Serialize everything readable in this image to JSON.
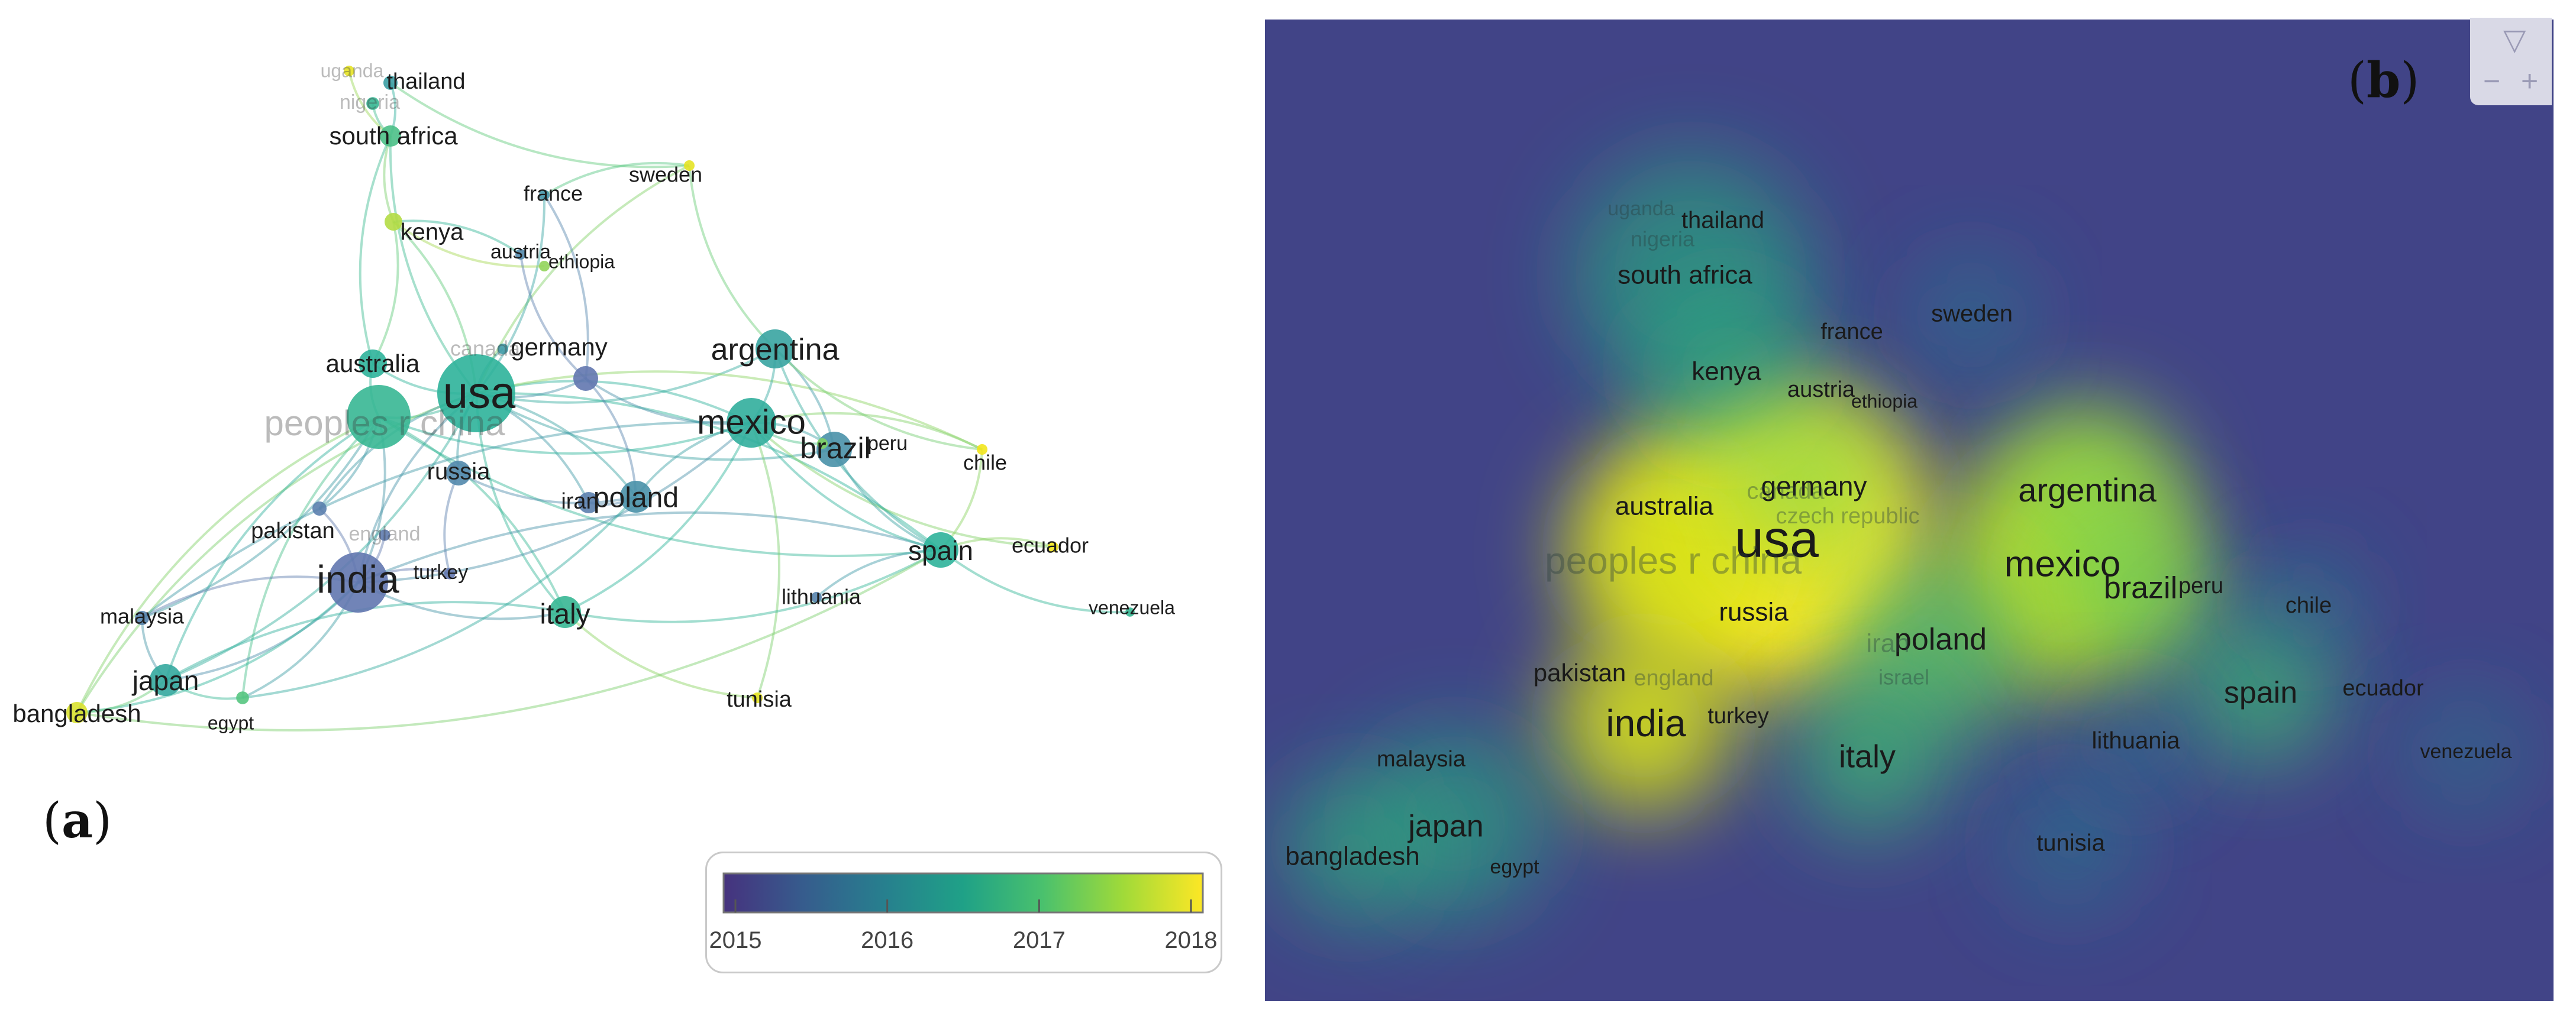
{
  "panels": {
    "a_label": "a",
    "b_label": "b"
  },
  "network": {
    "node_colors": {
      "2015": "#6a6fb0",
      "2015.5": "#5783ad",
      "2016": "#3f9aa6",
      "2016.5": "#2db39a",
      "2017": "#5fc97a",
      "2017.5": "#b4dc45",
      "2018": "#f2e51d"
    },
    "nodes": [
      {
        "id": "usa",
        "label": "usa",
        "year": 2016.5,
        "size": 11
      },
      {
        "id": "china",
        "label": "peoples r china",
        "year": 2016.6,
        "size": 9
      },
      {
        "id": "india",
        "label": "india",
        "year": 2015.2,
        "size": 8.5
      },
      {
        "id": "mexico",
        "label": "mexico",
        "year": 2016.4,
        "size": 7
      },
      {
        "id": "argentina",
        "label": "argentina",
        "year": 2016.2,
        "size": 5.5
      },
      {
        "id": "brazil",
        "label": "brazil",
        "year": 2015.8,
        "size": 5
      },
      {
        "id": "spain",
        "label": "spain",
        "year": 2016.5,
        "size": 5
      },
      {
        "id": "poland",
        "label": "poland",
        "year": 2015.8,
        "size": 4.5
      },
      {
        "id": "italy",
        "label": "italy",
        "year": 2016.6,
        "size": 4.5
      },
      {
        "id": "japan",
        "label": "japan",
        "year": 2016.3,
        "size": 4.5
      },
      {
        "id": "australia",
        "label": "australia",
        "year": 2016.5,
        "size": 4
      },
      {
        "id": "germany",
        "label": "germany",
        "year": 2015.2,
        "size": 3.5
      },
      {
        "id": "russia",
        "label": "russia",
        "year": 2015.6,
        "size": 3.5
      },
      {
        "id": "iran",
        "label": "iran",
        "year": 2015.4,
        "size": 3
      },
      {
        "id": "south-africa",
        "label": "south africa",
        "year": 2016.8,
        "size": 3
      },
      {
        "id": "kenya",
        "label": "kenya",
        "year": 2017.5,
        "size": 2.5
      },
      {
        "id": "bangladesh",
        "label": "bangladesh",
        "year": 2017.8,
        "size": 3
      },
      {
        "id": "pakistan",
        "label": "pakistan",
        "year": 2015.4,
        "size": 2
      },
      {
        "id": "malaysia",
        "label": "malaysia",
        "year": 2015.5,
        "size": 2
      },
      {
        "id": "egypt",
        "label": "egypt",
        "year": 2016.9,
        "size": 1.8
      },
      {
        "id": "turkey",
        "label": "turkey",
        "year": 2015.2,
        "size": 1.6
      },
      {
        "id": "england",
        "label": "england",
        "year": 2015.3,
        "size": 1.6
      },
      {
        "id": "canada",
        "label": "canada",
        "year": 2016.0,
        "size": 1.5
      },
      {
        "id": "france",
        "label": "france",
        "year": 2015.9,
        "size": 1.5
      },
      {
        "id": "austria",
        "label": "austria",
        "year": 2015.6,
        "size": 1.5
      },
      {
        "id": "ethiopia",
        "label": "ethiopia",
        "year": 2017.3,
        "size": 1.5
      },
      {
        "id": "thailand",
        "label": "thailand",
        "year": 2016.1,
        "size": 2
      },
      {
        "id": "nigeria",
        "label": "nigeria",
        "year": 2016.6,
        "size": 1.8
      },
      {
        "id": "uganda",
        "label": "uganda",
        "year": 2017.9,
        "size": 1.5
      },
      {
        "id": "sweden",
        "label": "sweden",
        "year": 2017.9,
        "size": 1.5
      },
      {
        "id": "chile",
        "label": "chile",
        "year": 2018,
        "size": 1.5
      },
      {
        "id": "peru",
        "label": "peru",
        "year": 2017.2,
        "size": 1.5
      },
      {
        "id": "ecuador",
        "label": "ecuador",
        "year": 2018,
        "size": 1.5
      },
      {
        "id": "lithuania",
        "label": "lithuania",
        "year": 2015.5,
        "size": 1.5
      },
      {
        "id": "tunisia",
        "label": "tunisia",
        "year": 2017.9,
        "size": 1.5
      },
      {
        "id": "venezuela",
        "label": "venezuela",
        "year": 2016.6,
        "size": 1.3
      }
    ],
    "links": [
      [
        "usa",
        "china"
      ],
      [
        "usa",
        "india"
      ],
      [
        "usa",
        "mexico"
      ],
      [
        "usa",
        "argentina"
      ],
      [
        "usa",
        "spain"
      ],
      [
        "usa",
        "brazil"
      ],
      [
        "usa",
        "poland"
      ],
      [
        "usa",
        "italy"
      ],
      [
        "usa",
        "japan"
      ],
      [
        "usa",
        "germany"
      ],
      [
        "usa",
        "australia"
      ],
      [
        "usa",
        "russia"
      ],
      [
        "usa",
        "south-africa"
      ],
      [
        "usa",
        "kenya"
      ],
      [
        "usa",
        "sweden"
      ],
      [
        "usa",
        "bangladesh"
      ],
      [
        "usa",
        "chile"
      ],
      [
        "usa",
        "france"
      ],
      [
        "usa",
        "iran"
      ],
      [
        "usa",
        "pakistan"
      ],
      [
        "china",
        "india"
      ],
      [
        "china",
        "japan"
      ],
      [
        "china",
        "australia"
      ],
      [
        "china",
        "mexico"
      ],
      [
        "china",
        "malaysia"
      ],
      [
        "china",
        "bangladesh"
      ],
      [
        "china",
        "pakistan"
      ],
      [
        "china",
        "egypt"
      ],
      [
        "china",
        "italy"
      ],
      [
        "china",
        "spain"
      ],
      [
        "india",
        "japan"
      ],
      [
        "india",
        "malaysia"
      ],
      [
        "india",
        "bangladesh"
      ],
      [
        "india",
        "pakistan"
      ],
      [
        "india",
        "egypt"
      ],
      [
        "india",
        "italy"
      ],
      [
        "india",
        "turkey"
      ],
      [
        "india",
        "mexico"
      ],
      [
        "india",
        "spain"
      ],
      [
        "mexico",
        "argentina"
      ],
      [
        "mexico",
        "brazil"
      ],
      [
        "mexico",
        "spain"
      ],
      [
        "mexico",
        "germany"
      ],
      [
        "mexico",
        "poland"
      ],
      [
        "mexico",
        "chile"
      ],
      [
        "mexico",
        "ecuador"
      ],
      [
        "mexico",
        "italy"
      ],
      [
        "mexico",
        "peru"
      ],
      [
        "mexico",
        "tunisia"
      ],
      [
        "argentina",
        "spain"
      ],
      [
        "argentina",
        "brazil"
      ],
      [
        "argentina",
        "chile"
      ],
      [
        "argentina",
        "sweden"
      ],
      [
        "brazil",
        "spain"
      ],
      [
        "brazil",
        "peru"
      ],
      [
        "spain",
        "venezuela"
      ],
      [
        "spain",
        "ecuador"
      ],
      [
        "spain",
        "chile"
      ],
      [
        "spain",
        "italy"
      ],
      [
        "spain",
        "lithuania"
      ],
      [
        "poland",
        "iran"
      ],
      [
        "poland",
        "germany"
      ],
      [
        "poland",
        "russia"
      ],
      [
        "south-africa",
        "kenya"
      ],
      [
        "south-africa",
        "nigeria"
      ],
      [
        "south-africa",
        "thailand"
      ],
      [
        "south-africa",
        "uganda"
      ],
      [
        "kenya",
        "ethiopia"
      ],
      [
        "kenya",
        "austria"
      ],
      [
        "germany",
        "france"
      ],
      [
        "germany",
        "austria"
      ],
      [
        "italy",
        "tunisia"
      ],
      [
        "japan",
        "bangladesh"
      ],
      [
        "japan",
        "egypt"
      ],
      [
        "japan",
        "malaysia"
      ],
      [
        "thailand",
        "sweden"
      ],
      [
        "france",
        "sweden"
      ],
      [
        "australia",
        "kenya"
      ],
      [
        "australia",
        "south-africa"
      ],
      [
        "russia",
        "turkey"
      ],
      [
        "england",
        "india"
      ],
      [
        "canada",
        "usa"
      ],
      [
        "japan",
        "italy"
      ],
      [
        "bangladesh",
        "spain"
      ],
      [
        "malaysia",
        "mexico"
      ],
      [
        "egypt",
        "poland"
      ]
    ],
    "legend": {
      "ticks": [
        "2015",
        "2016",
        "2017",
        "2018"
      ],
      "stops": [
        "#46327e",
        "#365c8d",
        "#277f8e",
        "#1fa187",
        "#4ac16d",
        "#a0da39",
        "#fde725"
      ]
    }
  },
  "density": {
    "background": "#414487",
    "labels": [
      {
        "id": "usa",
        "text": "usa"
      },
      {
        "id": "china",
        "text": "peoples r china"
      },
      {
        "id": "india",
        "text": "india"
      },
      {
        "id": "mexico",
        "text": "mexico"
      },
      {
        "id": "argentina",
        "text": "argentina"
      },
      {
        "id": "brazil",
        "text": "brazil"
      },
      {
        "id": "peru",
        "text": "peru"
      },
      {
        "id": "spain",
        "text": "spain"
      },
      {
        "id": "poland",
        "text": "poland"
      },
      {
        "id": "iran",
        "text": "iran"
      },
      {
        "id": "israel",
        "text": "israel"
      },
      {
        "id": "italy",
        "text": "italy"
      },
      {
        "id": "japan",
        "text": "japan"
      },
      {
        "id": "australia",
        "text": "australia"
      },
      {
        "id": "germany",
        "text": "germany"
      },
      {
        "id": "canada",
        "text": "canada"
      },
      {
        "id": "czech",
        "text": "czech republic"
      },
      {
        "id": "russia",
        "text": "russia"
      },
      {
        "id": "south-africa",
        "text": "south africa"
      },
      {
        "id": "kenya",
        "text": "kenya"
      },
      {
        "id": "bangladesh",
        "text": "bangladesh"
      },
      {
        "id": "pakistan",
        "text": "pakistan"
      },
      {
        "id": "england",
        "text": "england"
      },
      {
        "id": "turkey",
        "text": "turkey"
      },
      {
        "id": "malaysia",
        "text": "malaysia"
      },
      {
        "id": "egypt",
        "text": "egypt"
      },
      {
        "id": "france",
        "text": "france"
      },
      {
        "id": "sweden",
        "text": "sweden"
      },
      {
        "id": "austria",
        "text": "austria"
      },
      {
        "id": "ethiopia",
        "text": "ethiopia"
      },
      {
        "id": "thailand",
        "text": "thailand"
      },
      {
        "id": "nigeria",
        "text": "nigeria"
      },
      {
        "id": "uganda",
        "text": "uganda"
      },
      {
        "id": "chile",
        "text": "chile"
      },
      {
        "id": "ecuador",
        "text": "ecuador"
      },
      {
        "id": "venezuela",
        "text": "venezuela"
      },
      {
        "id": "lithuania",
        "text": "lithuania"
      },
      {
        "id": "tunisia",
        "text": "tunisia"
      }
    ],
    "zoom_controls": {
      "collapse": "▽",
      "zoom_out": "−",
      "zoom_in": "+"
    }
  }
}
